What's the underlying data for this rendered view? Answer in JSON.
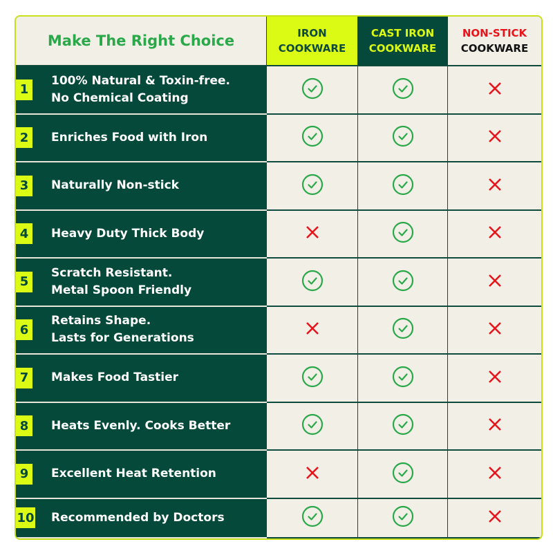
{
  "header": {
    "title": "Make The Right Choice",
    "columns": [
      {
        "line1": "IRON",
        "line2": "COOKWARE"
      },
      {
        "line1": "CAST IRON",
        "line2": "COOKWARE"
      },
      {
        "line1": "NON-STICK",
        "line2": "COOKWARE"
      }
    ]
  },
  "colors": {
    "green": "#05493a",
    "lime": "#dcfb14",
    "check": "#2aa84a",
    "cross": "#e8141b"
  },
  "rows": [
    {
      "num": "1",
      "label": "100% Natural & Toxin-free.\nNo Chemical Coating",
      "values": [
        "check",
        "check",
        "cross"
      ]
    },
    {
      "num": "2",
      "label": "Enriches Food with Iron",
      "values": [
        "check",
        "check",
        "cross"
      ]
    },
    {
      "num": "3",
      "label": "Naturally Non-stick",
      "values": [
        "check",
        "check",
        "cross"
      ]
    },
    {
      "num": "4",
      "label": "Heavy Duty Thick Body",
      "values": [
        "cross",
        "check",
        "cross"
      ]
    },
    {
      "num": "5",
      "label": "Scratch Resistant.\nMetal Spoon Friendly",
      "values": [
        "check",
        "check",
        "cross"
      ]
    },
    {
      "num": "6",
      "label": "Retains Shape.\nLasts for Generations",
      "values": [
        "cross",
        "check",
        "cross"
      ]
    },
    {
      "num": "7",
      "label": "Makes Food Tastier",
      "values": [
        "check",
        "check",
        "cross"
      ]
    },
    {
      "num": "8",
      "label": "Heats Evenly. Cooks Better",
      "values": [
        "check",
        "check",
        "cross"
      ]
    },
    {
      "num": "9",
      "label": "Excellent Heat Retention",
      "values": [
        "cross",
        "check",
        "cross"
      ]
    },
    {
      "num": "10",
      "label": "Recommended by Doctors",
      "values": [
        "check",
        "check",
        "cross"
      ]
    }
  ]
}
